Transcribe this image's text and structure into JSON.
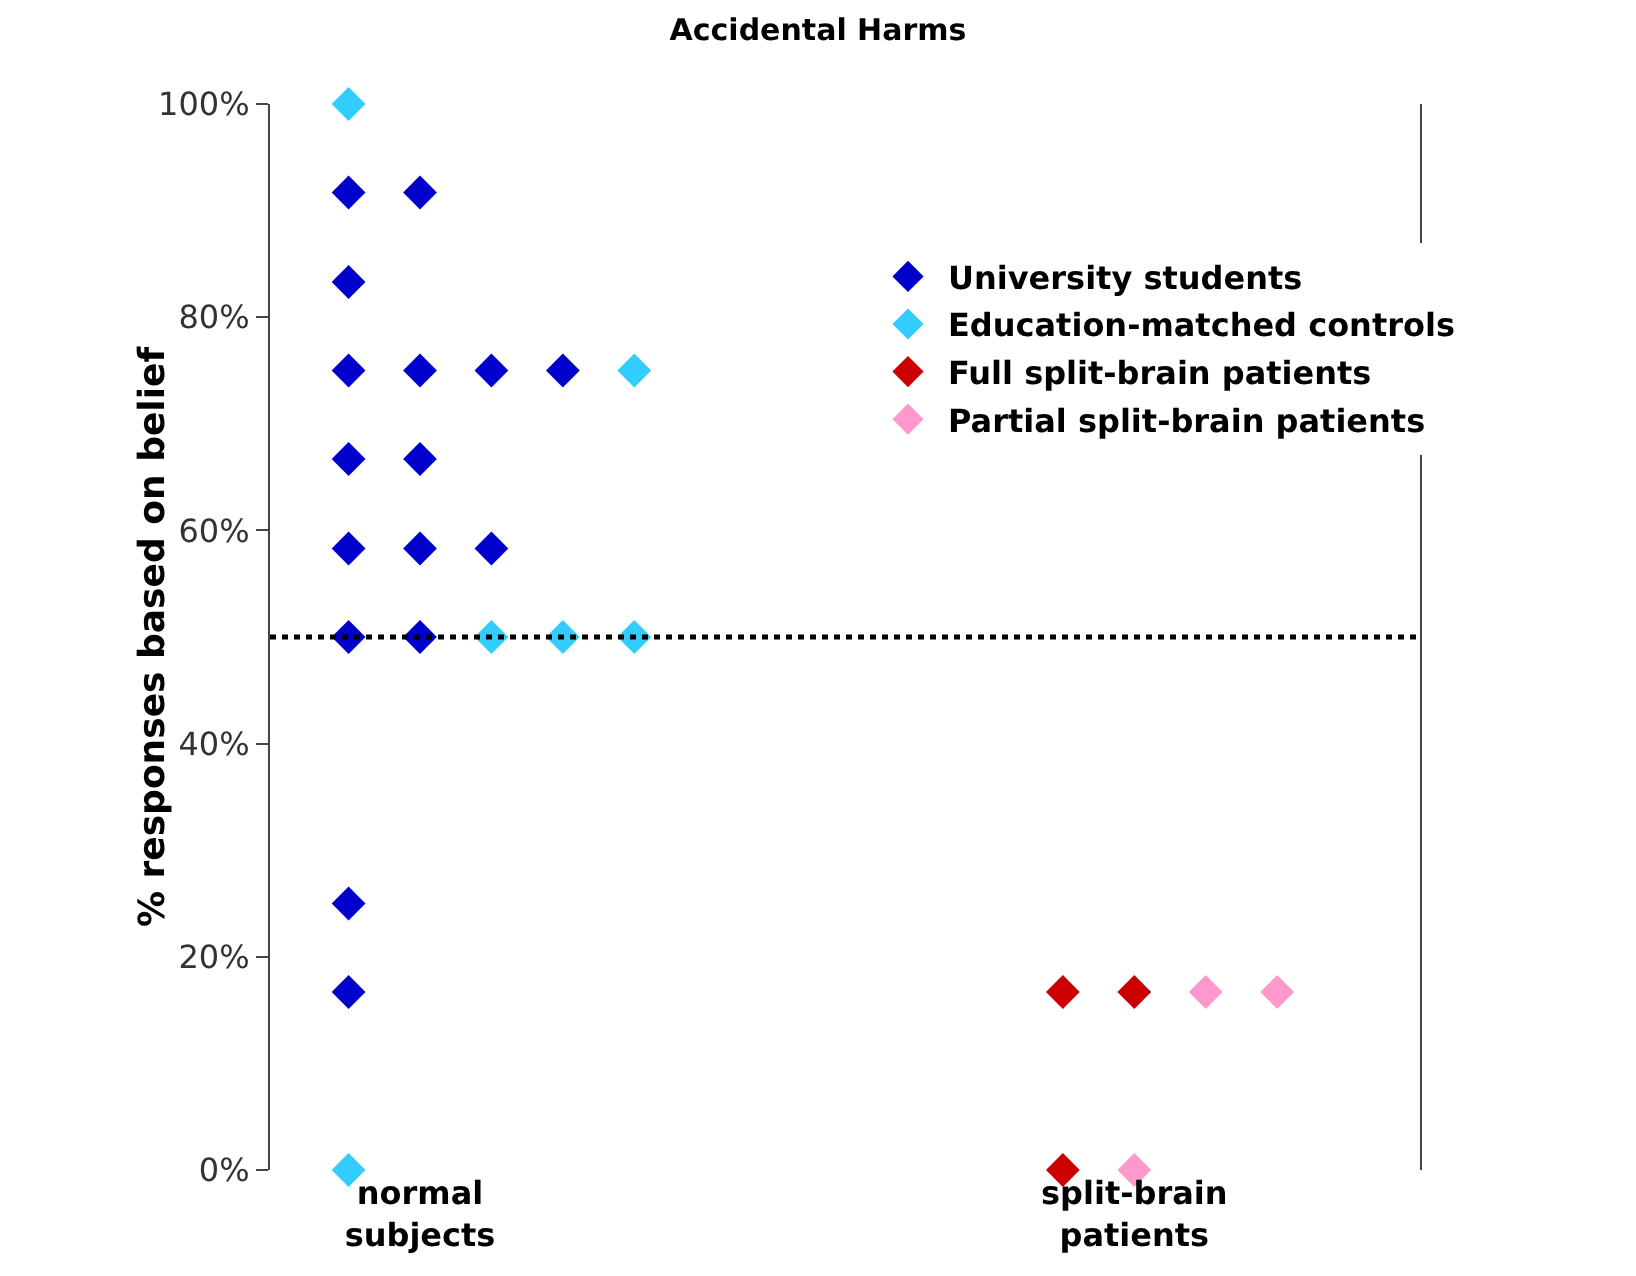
{
  "chart_data": {
    "type": "scatter",
    "title": "Accidental Harms",
    "ylabel": "% responses based on belief",
    "categories": [
      null,
      "normal subjects",
      null,
      null,
      null,
      null,
      null,
      null,
      null,
      null,
      null,
      "split-brain patients",
      null,
      null
    ],
    "ylim": [
      0,
      100
    ],
    "yticks": [
      {
        "value": 0,
        "label": "0%"
      },
      {
        "value": 20,
        "label": "20%"
      },
      {
        "value": 40,
        "label": "40%"
      },
      {
        "value": 60,
        "label": "60%"
      },
      {
        "value": 80,
        "label": "80%"
      },
      {
        "value": 100,
        "label": "100%"
      }
    ],
    "series": [
      {
        "name": "University students",
        "color": "#0000cc",
        "values": [
          91.7,
          91.7,
          75,
          75,
          null,
          null,
          null,
          null,
          null,
          null,
          null,
          null,
          null,
          null
        ]
      },
      {
        "color": "#0000cc",
        "values": [
          83.3,
          75,
          58.3,
          null,
          null,
          null,
          null,
          null,
          null,
          null,
          null,
          null,
          null,
          null
        ]
      },
      {
        "color": "#0000cc",
        "values": [
          75,
          66.7,
          null,
          null,
          null,
          null,
          null,
          null,
          null,
          null,
          null,
          null,
          null,
          null
        ]
      },
      {
        "color": "#0000cc",
        "values": [
          66.7,
          58.3,
          null,
          null,
          null,
          null,
          null,
          null,
          null,
          null,
          null,
          null,
          null,
          null
        ]
      },
      {
        "color": "#0000cc",
        "values": [
          58.3,
          50,
          null,
          null,
          null,
          null,
          null,
          null,
          null,
          null,
          null,
          null,
          null,
          null
        ]
      },
      {
        "color": "#0000cc",
        "values": [
          50,
          null,
          null,
          null,
          null,
          null,
          null,
          null,
          null,
          null,
          null,
          null,
          null,
          null
        ]
      },
      {
        "color": "#0000cc",
        "values": [
          25,
          null,
          null,
          null,
          null,
          null,
          null,
          null,
          null,
          null,
          null,
          null,
          null,
          null
        ]
      },
      {
        "color": "#0000cc",
        "values": [
          16.7,
          null,
          null,
          null,
          null,
          null,
          null,
          null,
          null,
          null,
          null,
          null,
          null,
          null
        ]
      },
      {
        "name": "Education-matched controls",
        "color": "#33ccff",
        "values": [
          100,
          null,
          50,
          50,
          75,
          null,
          null,
          null,
          null,
          null,
          null,
          null,
          null,
          null
        ]
      },
      {
        "color": "#33ccff",
        "values": [
          0,
          null,
          null,
          null,
          50,
          null,
          null,
          null,
          null,
          null,
          null,
          null,
          null,
          null
        ]
      },
      {
        "name": "Full split-brain patients",
        "color": "#cc0000",
        "values": [
          null,
          null,
          null,
          null,
          null,
          null,
          null,
          null,
          null,
          null,
          16.7,
          16.7,
          null,
          null
        ]
      },
      {
        "color": "#cc0000",
        "values": [
          null,
          null,
          null,
          null,
          null,
          null,
          null,
          null,
          null,
          null,
          0,
          null,
          null,
          null
        ]
      },
      {
        "name": "Partial split-brain patients",
        "color": "#ff99cc",
        "values": [
          null,
          null,
          null,
          null,
          null,
          null,
          null,
          null,
          null,
          null,
          null,
          0,
          16.7,
          16.7
        ]
      }
    ],
    "ref_lines": [
      {
        "axis": "y",
        "value": 50,
        "color": "#000000",
        "line_style": "dotted"
      }
    ],
    "marker": "diamond",
    "grid": false,
    "legend": "top right"
  }
}
